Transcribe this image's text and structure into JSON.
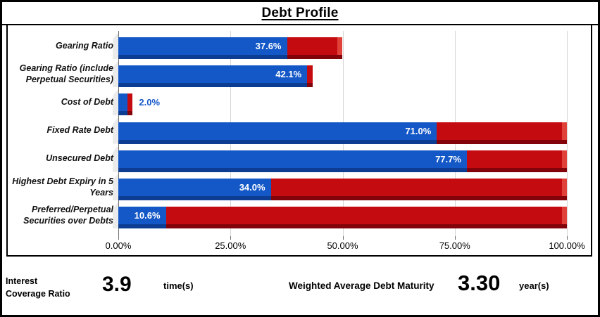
{
  "title": "Debt Profile",
  "chart_data": {
    "type": "bar",
    "orientation": "horizontal",
    "stacked": true,
    "title": "Debt Profile",
    "categories": [
      "Gearing Ratio",
      "Gearing Ratio (include Perpetual Securities)",
      "Cost of Debt",
      "Fixed Rate Debt",
      "Unsecured Debt",
      "Highest Debt Expiry in 5 Years",
      "Preferred/Perpetual Securities over Debts"
    ],
    "series": [
      {
        "name": "value",
        "color": "#1458c8",
        "values": [
          37.6,
          42.1,
          2.0,
          71.0,
          77.7,
          34.0,
          10.6
        ]
      },
      {
        "name": "remainder",
        "color": "#c40b10",
        "values": [
          12.4,
          1.2,
          1.2,
          29.0,
          22.3,
          66.0,
          89.4
        ]
      }
    ],
    "data_labels": [
      "37.6%",
      "42.1%",
      "2.0%",
      "71.0%",
      "77.7%",
      "34.0%",
      "10.6%"
    ],
    "label_inside": [
      true,
      true,
      false,
      true,
      true,
      true,
      true
    ],
    "x_ticks": [
      "0.00%",
      "25.00%",
      "50.00%",
      "75.00%",
      "100.00%"
    ],
    "x_tick_values": [
      0,
      25,
      50,
      75,
      100
    ],
    "xlim": [
      0,
      100
    ],
    "grid": true,
    "legend": "none"
  },
  "footer": {
    "metric1_label": "Interest\nCoverage Ratio",
    "metric1_value": "3.9",
    "metric1_unit": "time(s)",
    "metric2_label": "Weighted Average Debt Maturity",
    "metric2_value": "3.30",
    "metric2_unit": "year(s)"
  },
  "colors": {
    "bar_value": "#1458c8",
    "bar_value_shadow": "#0c3d92",
    "bar_remainder": "#c40b10",
    "bar_remainder_shadow": "#82040a",
    "bar_remainder_cap": "#e0423a",
    "gridline": "#d6d6d6",
    "border": "#000000",
    "label_outside_text": "#1458c8"
  }
}
